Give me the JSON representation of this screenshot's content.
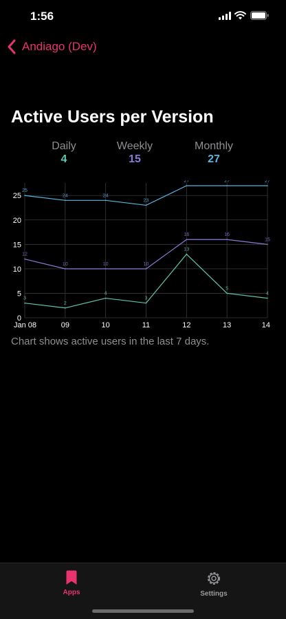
{
  "status_bar": {
    "time": "1:56"
  },
  "nav": {
    "back_label": "Andiago (Dev)"
  },
  "page": {
    "title": "Active Users per Version",
    "caption": "Chart shows active users in the last 7 days."
  },
  "stats": [
    {
      "label": "Daily",
      "value": "4",
      "color": "#5fc8b2"
    },
    {
      "label": "Weekly",
      "value": "15",
      "color": "#8b7bd9"
    },
    {
      "label": "Monthly",
      "value": "27",
      "color": "#5bb4e0"
    }
  ],
  "chart_data": {
    "type": "line",
    "categories": [
      "Jan 08",
      "09",
      "10",
      "11",
      "12",
      "13",
      "14"
    ],
    "ylim": [
      0,
      27
    ],
    "yticks": [
      0,
      5,
      10,
      15,
      20,
      25
    ],
    "grid": true,
    "series": [
      {
        "name": "Monthly",
        "color": "#5bb4e0",
        "values": [
          25,
          24,
          24,
          23,
          27,
          27,
          27
        ]
      },
      {
        "name": "Weekly",
        "color": "#8b7bd9",
        "values": [
          12,
          10,
          10,
          10,
          16,
          16,
          15
        ]
      },
      {
        "name": "Daily",
        "color": "#5fc8b2",
        "values": [
          3,
          2,
          4,
          3,
          13,
          5,
          4
        ]
      }
    ]
  },
  "tabs": [
    {
      "label": "Apps",
      "icon": "bookmark-icon",
      "active": true,
      "color": "#e8336f"
    },
    {
      "label": "Settings",
      "icon": "gear-icon",
      "active": false,
      "color": "#9a9a9f"
    }
  ]
}
